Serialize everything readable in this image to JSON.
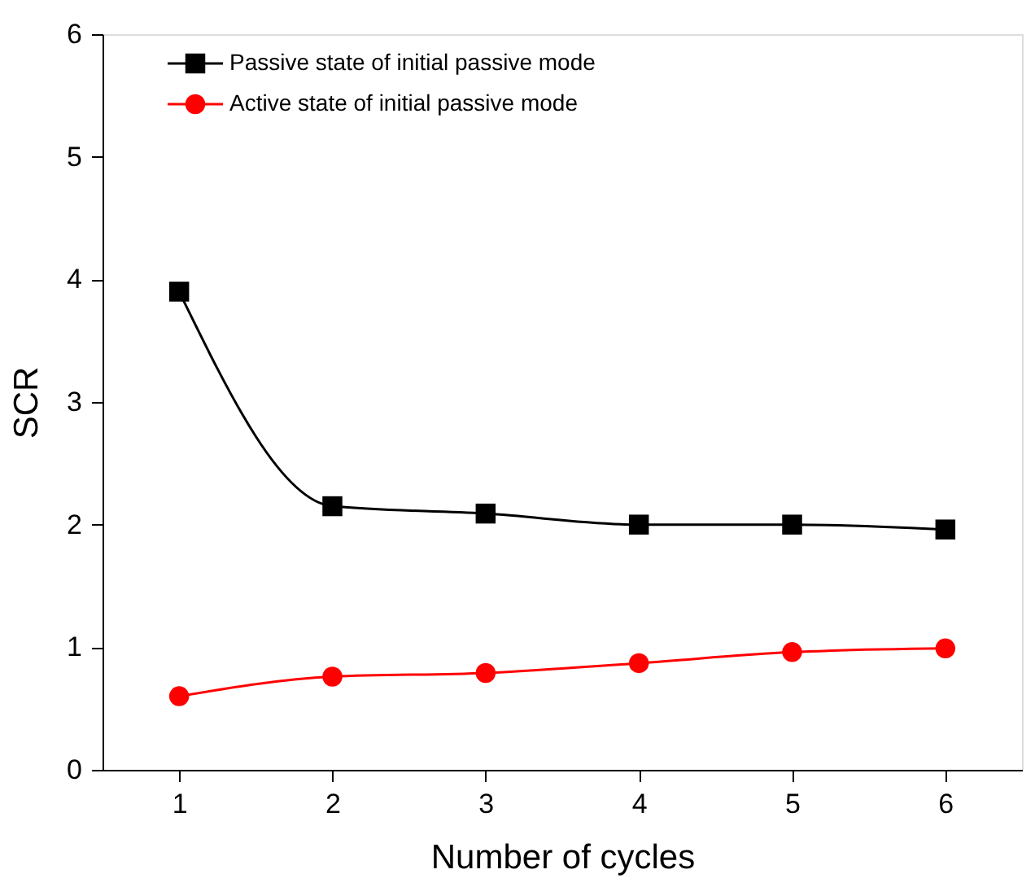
{
  "chart_data": {
    "type": "line",
    "xlabel": "Number of cycles",
    "ylabel": "SCR",
    "x": [
      1,
      2,
      3,
      4,
      5,
      6
    ],
    "series": [
      {
        "name": "Passive state of initial passive mode",
        "color": "#000000",
        "marker": "square",
        "values": [
          3.9,
          2.15,
          2.09,
          2.0,
          2.0,
          1.96
        ]
      },
      {
        "name": "Active state of initial passive mode",
        "color": "#ff0000",
        "marker": "circle",
        "values": [
          0.6,
          0.76,
          0.79,
          0.87,
          0.96,
          0.99
        ]
      }
    ],
    "xlim": [
      0.5,
      6.5
    ],
    "xticks": [
      1,
      2,
      3,
      4,
      5,
      6
    ],
    "ylim": [
      0,
      6
    ],
    "yticks": [
      0,
      1,
      2,
      3,
      4,
      5,
      6
    ],
    "grid": false,
    "legend": "top left",
    "line_style": "solid"
  }
}
